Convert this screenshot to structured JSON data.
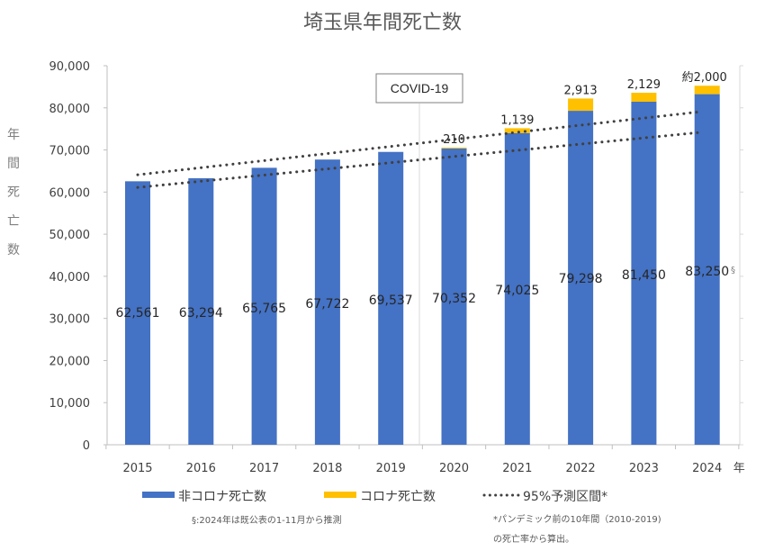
{
  "chart_data": {
    "type": "bar",
    "stacked": true,
    "title": "埼玉県年間死亡数",
    "ylabel": "年間死亡数",
    "xlabel_suffix": "年",
    "ylim": [
      0,
      90000
    ],
    "yticks": [
      "0",
      "10,000",
      "20,000",
      "30,000",
      "40,000",
      "50,000",
      "60,000",
      "70,000",
      "80,000",
      "90,000"
    ],
    "yticks_values": [
      0,
      10000,
      20000,
      30000,
      40000,
      50000,
      60000,
      70000,
      80000,
      90000
    ],
    "categories": [
      "2015",
      "2016",
      "2017",
      "2018",
      "2019",
      "2020",
      "2021",
      "2022",
      "2023",
      "2024"
    ],
    "series": [
      {
        "name": "非コロナ死亡数",
        "color": "#4472c4",
        "values": [
          62561,
          63294,
          65765,
          67722,
          69537,
          70352,
          74025,
          79298,
          81450,
          83250
        ],
        "labels": [
          "62,561",
          "63,294",
          "65,765",
          "67,722",
          "69,537",
          "70,352",
          "74,025",
          "79,298",
          "81,450",
          "83,250"
        ]
      },
      {
        "name": "コロナ死亡数",
        "color": "#ffc000",
        "values": [
          0,
          0,
          0,
          0,
          0,
          210,
          1139,
          2913,
          2129,
          2000
        ],
        "labels": [
          "",
          "",
          "",
          "",
          "",
          "210",
          "1,139",
          "2,913",
          "2,129",
          "約2,000"
        ]
      }
    ],
    "prediction_interval": {
      "name": "95%予測区間*",
      "color": "#404040",
      "upper": {
        "from": [
          "2015",
          64100
        ],
        "to": [
          "2024",
          79100
        ]
      },
      "lower": {
        "from": [
          "2015",
          61100
        ],
        "to": [
          "2024",
          74200
        ]
      }
    },
    "annotation": "COVID-19",
    "annotation_at": "2019-2020",
    "section_mark": "§",
    "legend_position": "bottom",
    "notes": [
      "§:2024年は既公表の1-11月から推測",
      "*パンデミック前の10年間（2010-2019)",
      "の死亡率から算出。"
    ]
  }
}
